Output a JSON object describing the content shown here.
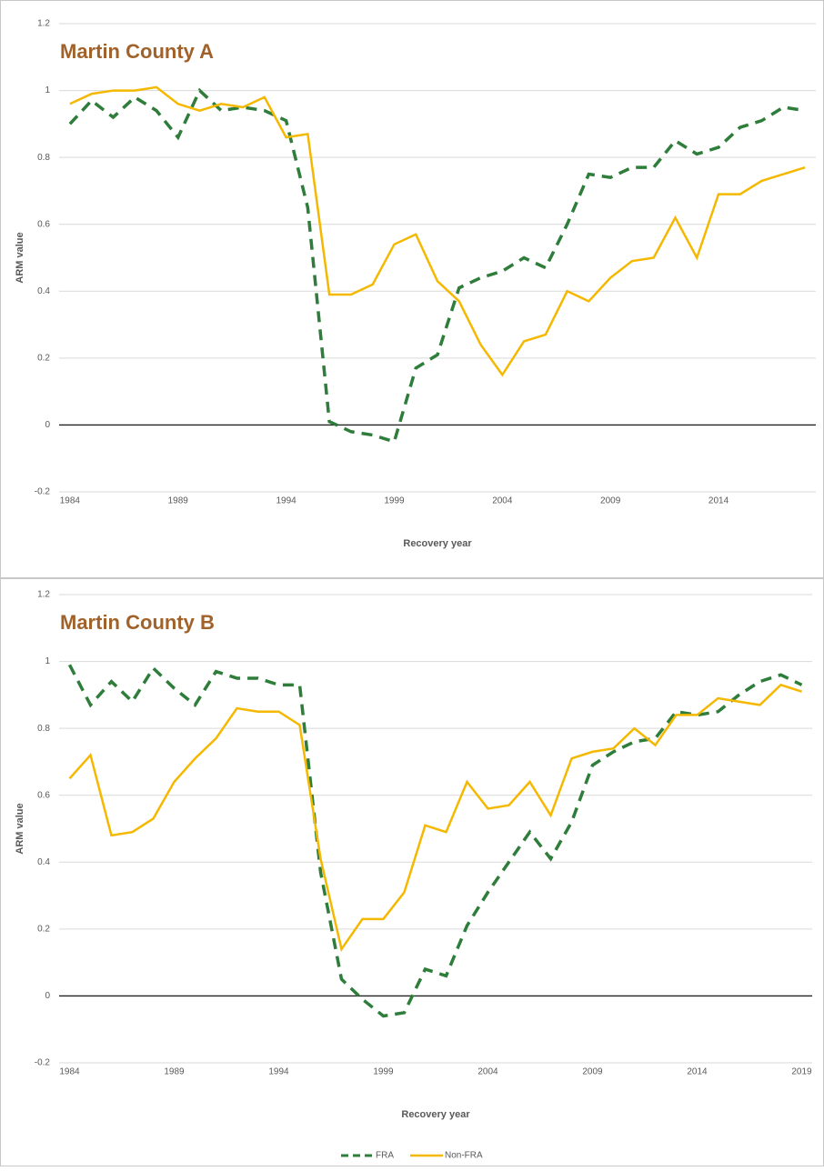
{
  "chart_data": [
    {
      "type": "line",
      "title": "Martin County A",
      "ylabel": "ARM value",
      "xlabel": "Recovery year",
      "x": [
        1984,
        1985,
        1986,
        1987,
        1988,
        1989,
        1990,
        1991,
        1992,
        1993,
        1994,
        1995,
        1996,
        1997,
        1998,
        1999,
        2000,
        2001,
        2002,
        2003,
        2004,
        2005,
        2006,
        2007,
        2008,
        2009,
        2010,
        2011,
        2012,
        2013,
        2014,
        2015,
        2016,
        2017,
        2018
      ],
      "series": [
        {
          "color": "#2e7d3a",
          "dashed": true,
          "values": [
            0.9,
            0.97,
            0.92,
            0.98,
            0.94,
            0.86,
            1.0,
            0.94,
            0.95,
            0.94,
            0.91,
            0.65,
            0.01,
            -0.02,
            -0.03,
            -0.05,
            0.17,
            0.21,
            0.41,
            0.44,
            0.46,
            0.5,
            0.47,
            0.6,
            0.75,
            0.74,
            0.77,
            0.77,
            0.85,
            0.81,
            0.83,
            0.89,
            0.91,
            0.95,
            0.94
          ]
        },
        {
          "color": "#f5b800",
          "dashed": false,
          "values": [
            0.96,
            0.99,
            1.0,
            1.0,
            1.01,
            0.96,
            0.94,
            0.96,
            0.95,
            0.98,
            0.86,
            0.87,
            0.39,
            0.39,
            0.42,
            0.54,
            0.57,
            0.43,
            0.37,
            0.24,
            0.15,
            0.25,
            0.27,
            0.4,
            0.37,
            0.44,
            0.49,
            0.5,
            0.62,
            0.5,
            0.69,
            0.69,
            0.73,
            0.75,
            0.77
          ]
        }
      ],
      "xlim": [
        1983.5,
        2018.5
      ],
      "xticks": [
        1984,
        1989,
        1994,
        1999,
        2004,
        2009,
        2014
      ],
      "ylim": [
        -0.2,
        1.2
      ],
      "yticks": [
        -0.2,
        0,
        0.2,
        0.4,
        0.6,
        0.8,
        1,
        1.2
      ],
      "grid": true
    },
    {
      "type": "line",
      "title": "Martin County B",
      "ylabel": "ARM value",
      "xlabel": "Recovery year",
      "x": [
        1984,
        1985,
        1986,
        1987,
        1988,
        1989,
        1990,
        1991,
        1992,
        1993,
        1994,
        1995,
        1996,
        1997,
        1998,
        1999,
        2000,
        2001,
        2002,
        2003,
        2004,
        2005,
        2006,
        2007,
        2008,
        2009,
        2010,
        2011,
        2012,
        2013,
        2014,
        2015,
        2016,
        2017,
        2018,
        2019
      ],
      "series": [
        {
          "name": "FRA",
          "color": "#2e7d3a",
          "dashed": true,
          "values": [
            0.99,
            0.87,
            0.94,
            0.88,
            0.98,
            0.92,
            0.87,
            0.97,
            0.95,
            0.95,
            0.93,
            0.93,
            0.37,
            0.05,
            -0.01,
            -0.06,
            -0.05,
            0.08,
            0.06,
            0.21,
            0.31,
            0.4,
            0.49,
            0.41,
            0.52,
            0.69,
            0.73,
            0.76,
            0.77,
            0.85,
            0.84,
            0.85,
            0.9,
            0.94,
            0.96,
            0.93
          ]
        },
        {
          "name": "Non-FRA",
          "color": "#f5b800",
          "dashed": false,
          "values": [
            0.65,
            0.72,
            0.48,
            0.49,
            0.53,
            0.64,
            0.71,
            0.77,
            0.86,
            0.85,
            0.85,
            0.81,
            0.41,
            0.14,
            0.23,
            0.23,
            0.31,
            0.51,
            0.49,
            0.64,
            0.56,
            0.57,
            0.64,
            0.54,
            0.71,
            0.73,
            0.74,
            0.8,
            0.75,
            0.84,
            0.84,
            0.89,
            0.88,
            0.87,
            0.93,
            0.91
          ]
        }
      ],
      "xlim": [
        1983.5,
        2019.5
      ],
      "xticks": [
        1984,
        1989,
        1994,
        1999,
        2004,
        2009,
        2014,
        2019
      ],
      "ylim": [
        -0.2,
        1.2
      ],
      "yticks": [
        -0.2,
        0,
        0.2,
        0.4,
        0.6,
        0.8,
        1,
        1.2
      ],
      "grid": true,
      "legend": "bottom"
    }
  ]
}
